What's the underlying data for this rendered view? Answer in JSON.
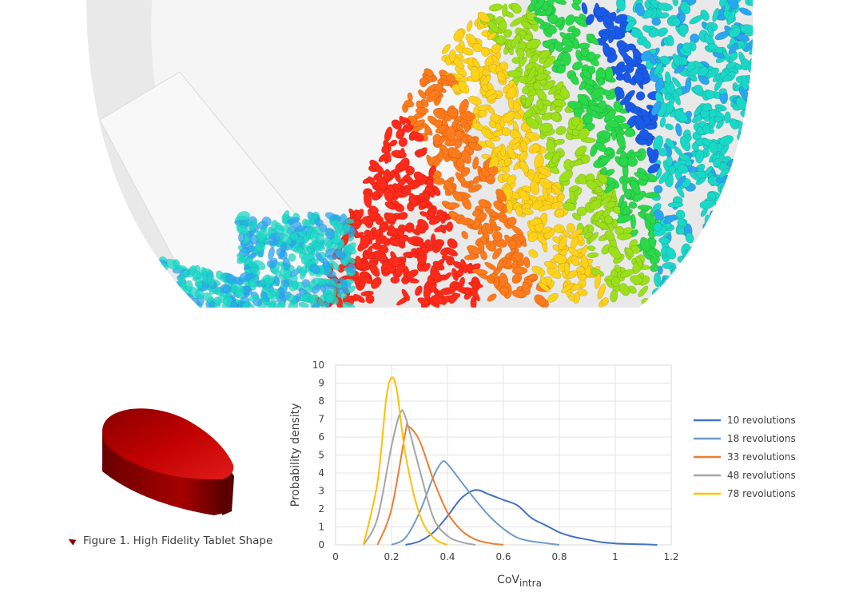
{
  "figure": {
    "caption": "Figure 1. High Fidelity Tablet Shape",
    "simulation_colors": [
      "#ff2a1a",
      "#ff7a1a",
      "#ffd21a",
      "#9be01a",
      "#2ad84a",
      "#1ad8c8",
      "#2aa6f0",
      "#1a5ae8"
    ],
    "tablet_color": "#b30000"
  },
  "chart_data": {
    "type": "line",
    "xlabel": "CoV",
    "xlabel_sub": "intra",
    "ylabel": "Probability density",
    "xlim": [
      0,
      1.2
    ],
    "ylim": [
      0,
      10
    ],
    "xticks": [
      "0",
      "0.2",
      "0.4",
      "0.6",
      "0.8",
      "1",
      "1.2"
    ],
    "yticks": [
      "0",
      "1",
      "2",
      "3",
      "4",
      "5",
      "6",
      "7",
      "8",
      "9",
      "10"
    ],
    "grid": true,
    "legend_position": "right",
    "series": [
      {
        "name": "10 revolutions",
        "color": "#4472c4",
        "x": [
          0.25,
          0.3,
          0.35,
          0.4,
          0.45,
          0.5,
          0.55,
          0.6,
          0.65,
          0.7,
          0.75,
          0.8,
          0.85,
          0.9,
          0.95,
          1.0,
          1.05,
          1.1,
          1.15
        ],
        "y": [
          0,
          0.2,
          0.7,
          1.6,
          2.6,
          3.05,
          2.8,
          2.5,
          2.2,
          1.5,
          1.1,
          0.7,
          0.45,
          0.3,
          0.15,
          0.08,
          0.05,
          0.03,
          0
        ]
      },
      {
        "name": "18 revolutions",
        "color": "#6f9bc8",
        "x": [
          0.2,
          0.25,
          0.3,
          0.35,
          0.38,
          0.4,
          0.45,
          0.5,
          0.55,
          0.6,
          0.65,
          0.7,
          0.75,
          0.8
        ],
        "y": [
          0,
          0.4,
          1.8,
          3.8,
          4.6,
          4.5,
          3.5,
          2.5,
          1.6,
          0.9,
          0.4,
          0.2,
          0.1,
          0
        ]
      },
      {
        "name": "33 revolutions",
        "color": "#ed7d31",
        "x": [
          0.15,
          0.2,
          0.25,
          0.26,
          0.3,
          0.35,
          0.4,
          0.45,
          0.5,
          0.55,
          0.6
        ],
        "y": [
          0,
          2.0,
          6.3,
          6.6,
          5.8,
          3.6,
          1.8,
          0.8,
          0.3,
          0.1,
          0
        ]
      },
      {
        "name": "48 revolutions",
        "color": "#a5a5a5",
        "x": [
          0.1,
          0.15,
          0.2,
          0.23,
          0.25,
          0.3,
          0.35,
          0.4,
          0.45,
          0.5
        ],
        "y": [
          0,
          1.5,
          5.5,
          7.3,
          7.1,
          4.2,
          1.5,
          0.5,
          0.15,
          0
        ]
      },
      {
        "name": "78 revolutions",
        "color": "#ffc000",
        "x": [
          0.1,
          0.15,
          0.18,
          0.2,
          0.22,
          0.25,
          0.3,
          0.35,
          0.4
        ],
        "y": [
          0,
          3.5,
          8.0,
          9.3,
          8.5,
          5.0,
          1.7,
          0.4,
          0
        ]
      }
    ]
  }
}
